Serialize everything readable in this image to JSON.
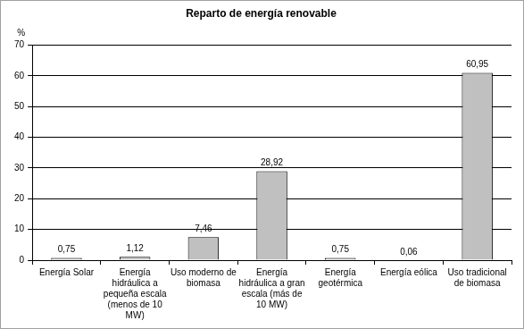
{
  "chart_data": {
    "type": "bar",
    "title": "Reparto de energía renovable",
    "y_label": "%",
    "categories": [
      "Energía Solar",
      "Energía hidráulica a pequeña escala (menos de 10 MW)",
      "Uso moderno de biomasa",
      "Energía hidráulica a gran escala (más de 10 MW)",
      "Energía geotérmica",
      "Energía eólica",
      "Uso tradicional de biomasa"
    ],
    "values": [
      0.75,
      1.12,
      7.46,
      28.92,
      0.75,
      0.06,
      60.95
    ],
    "value_labels": [
      "0,75",
      "1,12",
      "7,46",
      "28,92",
      "0,75",
      "0,06",
      "60,95"
    ],
    "color": "#c0c0c0",
    "ylim": [
      0,
      70
    ],
    "yticks": [
      0,
      10,
      20,
      30,
      40,
      50,
      60,
      70
    ],
    "grid": true,
    "data_labels": true
  }
}
